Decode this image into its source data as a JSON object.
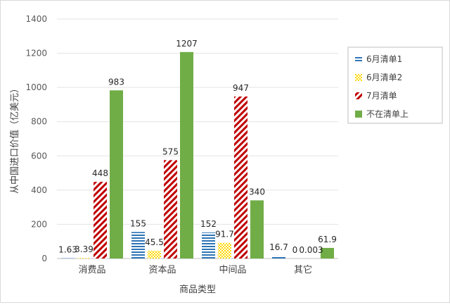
{
  "chart_data": {
    "type": "bar",
    "title": "",
    "xlabel": "商品类型",
    "ylabel": "从中国进口价值（亿美元）",
    "ylim": [
      0,
      1400
    ],
    "yticks": [
      "0",
      "200",
      "400",
      "600",
      "800",
      "1000",
      "1200",
      "1400"
    ],
    "grid": true,
    "legend_position": "right",
    "categories": [
      "消费品",
      "资本品",
      "中间品",
      "其它"
    ],
    "series": [
      {
        "name": "6月清单1",
        "values": [
          1.63,
          155,
          152,
          16.7
        ],
        "labels": [
          "1.63",
          "155",
          "152",
          "16.7"
        ],
        "color": "#2e75b6",
        "pattern": "hlines"
      },
      {
        "name": "6月清单2",
        "values": [
          3.39,
          45.5,
          91.7,
          0
        ],
        "labels": [
          "3.39",
          "45.5",
          "91.7",
          "0"
        ],
        "color": "#ffd700",
        "pattern": "checker"
      },
      {
        "name": "7月清单",
        "values": [
          448,
          575,
          947,
          0.003
        ],
        "labels": [
          "448",
          "575",
          "947",
          "0.003"
        ],
        "color": "#c00000",
        "pattern": "diag"
      },
      {
        "name": "不在清单上",
        "values": [
          983,
          1207,
          340,
          61.9
        ],
        "labels": [
          "983",
          "1207",
          "340",
          "61.9"
        ],
        "color": "#70ad47",
        "pattern": "solid"
      }
    ]
  }
}
